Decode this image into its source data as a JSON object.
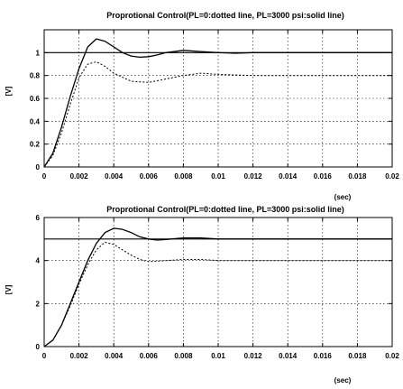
{
  "chart_data": [
    {
      "type": "line",
      "title": "Proprotional Control(PL=0:dotted line, PL=3000 psi:solid line)",
      "xlabel": "(sec)",
      "ylabel": "[V]",
      "xlim": [
        0,
        0.02
      ],
      "ylim": [
        0,
        1.2
      ],
      "xticks": [
        "0",
        "0.002",
        "0.004",
        "0.006",
        "0.008",
        "0.01",
        "0.012",
        "0.014",
        "0.016",
        "0.018",
        "0.02"
      ],
      "yticks": [
        "0",
        "0.2",
        "0.4",
        "0.6",
        "0.8",
        "1"
      ],
      "ytick_values": [
        0,
        0.2,
        0.4,
        0.6,
        0.8,
        1.0
      ],
      "grid": true,
      "reference": 1.0,
      "series": [
        {
          "style": "solid",
          "x": [
            0,
            0.0005,
            0.001,
            0.0015,
            0.002,
            0.0025,
            0.003,
            0.0035,
            0.004,
            0.0045,
            0.005,
            0.0055,
            0.006,
            0.0065,
            0.007,
            0.008,
            0.009,
            0.01,
            0.011,
            0.012,
            0.014,
            0.016,
            0.018,
            0.02
          ],
          "y": [
            0,
            0.12,
            0.35,
            0.62,
            0.86,
            1.05,
            1.12,
            1.1,
            1.05,
            1.0,
            0.97,
            0.96,
            0.965,
            0.98,
            1.0,
            1.02,
            1.01,
            1.0,
            0.995,
            1.0,
            1.0,
            1.0,
            1.0,
            1.0
          ]
        },
        {
          "style": "dotted",
          "x": [
            0,
            0.0005,
            0.001,
            0.0015,
            0.002,
            0.0025,
            0.003,
            0.0035,
            0.004,
            0.005,
            0.006,
            0.007,
            0.008,
            0.009,
            0.01,
            0.012,
            0.014,
            0.016,
            0.018,
            0.02
          ],
          "y": [
            0,
            0.1,
            0.3,
            0.55,
            0.78,
            0.9,
            0.92,
            0.88,
            0.82,
            0.75,
            0.74,
            0.77,
            0.8,
            0.82,
            0.81,
            0.8,
            0.8,
            0.8,
            0.8,
            0.8
          ]
        }
      ]
    },
    {
      "type": "line",
      "title": "Proprotional Control(PL=0:dotted line, PL=3000 psi:solid line)",
      "xlabel": "(sec)",
      "ylabel": "[V]",
      "xlim": [
        0,
        0.02
      ],
      "ylim": [
        0,
        6
      ],
      "xticks": [
        "0",
        "0.002",
        "0.004",
        "0.006",
        "0.008",
        "0.01",
        "0.012",
        "0.014",
        "0.016",
        "0.018",
        "0.02"
      ],
      "yticks": [
        "0",
        "2",
        "4",
        "6"
      ],
      "ytick_values": [
        0,
        2,
        4,
        6
      ],
      "grid": true,
      "reference": 5.0,
      "series": [
        {
          "style": "solid",
          "x": [
            0,
            0.0005,
            0.001,
            0.0015,
            0.002,
            0.0025,
            0.003,
            0.0035,
            0.004,
            0.0045,
            0.005,
            0.0055,
            0.006,
            0.0065,
            0.007,
            0.008,
            0.009,
            0.01,
            0.012,
            0.014,
            0.016,
            0.018,
            0.02
          ],
          "y": [
            0,
            0.3,
            1.0,
            2.0,
            3.0,
            4.0,
            4.8,
            5.3,
            5.5,
            5.45,
            5.3,
            5.1,
            5.0,
            4.95,
            4.98,
            5.05,
            5.05,
            5.0,
            5.0,
            5.0,
            5.0,
            5.0,
            5.0
          ]
        },
        {
          "style": "dotted",
          "x": [
            0,
            0.0005,
            0.001,
            0.0015,
            0.002,
            0.0025,
            0.003,
            0.0035,
            0.004,
            0.0045,
            0.005,
            0.0055,
            0.006,
            0.007,
            0.008,
            0.009,
            0.01,
            0.012,
            0.014,
            0.016,
            0.018,
            0.02
          ],
          "y": [
            0,
            0.3,
            1.0,
            1.9,
            2.9,
            3.8,
            4.5,
            4.85,
            4.75,
            4.5,
            4.25,
            4.05,
            3.95,
            4.0,
            4.05,
            4.05,
            4.0,
            4.0,
            4.0,
            4.0,
            4.0,
            4.0
          ]
        }
      ]
    }
  ]
}
